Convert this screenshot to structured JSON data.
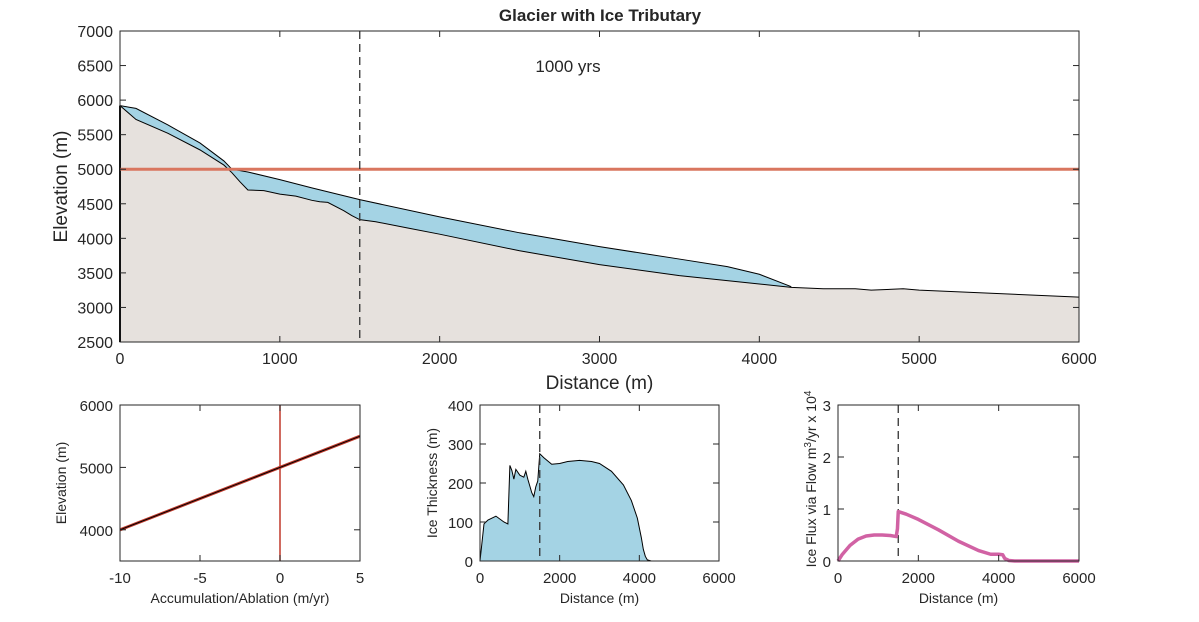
{
  "figure_title": "Glacier with Ice Tributary",
  "colors": {
    "bedrock_fill": "#e6e1dd",
    "ice_fill": "#a4d3e4",
    "ela_line": "#d9765f",
    "mb_line": "#c0392b",
    "flux_line": "#d162a4",
    "axis": "#262626"
  },
  "chart_data": [
    {
      "id": "profile",
      "type": "area",
      "title": "Glacier with Ice Tributary",
      "annotation": "1000 yrs",
      "xlabel": "Distance (m)",
      "ylabel": "Elevation (m)",
      "xlim": [
        0,
        6000
      ],
      "ylim": [
        2500,
        7000
      ],
      "xticks": [
        0,
        1000,
        2000,
        3000,
        4000,
        5000,
        6000
      ],
      "yticks": [
        2500,
        3000,
        3500,
        4000,
        4500,
        5000,
        5500,
        6000,
        6500,
        7000
      ],
      "ela": 5000,
      "marker_x": 1500,
      "bed": {
        "x": [
          0,
          100,
          300,
          500,
          650,
          700,
          750,
          800,
          900,
          1000,
          1100,
          1200,
          1250,
          1300,
          1400,
          1450,
          1500,
          1600,
          1800,
          2000,
          2500,
          3000,
          3500,
          4000,
          4200,
          4400,
          4600,
          4700,
          4900,
          5000,
          6000
        ],
        "y": [
          5920,
          5720,
          5520,
          5280,
          5060,
          4950,
          4820,
          4700,
          4690,
          4640,
          4610,
          4550,
          4530,
          4520,
          4400,
          4330,
          4270,
          4240,
          4150,
          4060,
          3820,
          3620,
          3460,
          3340,
          3290,
          3270,
          3270,
          3250,
          3270,
          3250,
          3150
        ]
      },
      "surface": {
        "x": [
          0,
          100,
          300,
          500,
          650,
          700,
          800,
          1000,
          1200,
          1500,
          2000,
          2500,
          3000,
          3500,
          3800,
          4000,
          4200
        ],
        "y": [
          5920,
          5880,
          5640,
          5380,
          5120,
          5000,
          4960,
          4850,
          4730,
          4560,
          4310,
          4080,
          3880,
          3700,
          3590,
          3480,
          3300
        ]
      }
    },
    {
      "id": "mass_balance",
      "type": "line",
      "xlabel": "Accumulation/Ablation (m/yr)",
      "ylabel": "Elevation (m)",
      "xlim": [
        -10,
        5
      ],
      "ylim": [
        3500,
        6000
      ],
      "xticks": [
        -10,
        -5,
        0,
        5
      ],
      "yticks": [
        4000,
        5000,
        6000
      ],
      "line": {
        "x": [
          -10,
          5
        ],
        "y": [
          4000,
          5500
        ]
      },
      "zero_line_x": 0
    },
    {
      "id": "thickness",
      "type": "area",
      "xlabel": "Distance (m)",
      "ylabel": "Ice Thickness (m)",
      "xlim": [
        0,
        6000
      ],
      "ylim": [
        0,
        400
      ],
      "xticks": [
        0,
        2000,
        4000,
        6000
      ],
      "yticks": [
        0,
        100,
        200,
        300,
        400
      ],
      "marker_x": 1500,
      "x": [
        0,
        100,
        200,
        400,
        600,
        700,
        750,
        800,
        850,
        900,
        1000,
        1100,
        1150,
        1200,
        1300,
        1350,
        1400,
        1450,
        1500,
        1600,
        1800,
        2000,
        2200,
        2500,
        2800,
        3000,
        3300,
        3600,
        3800,
        3950,
        4050,
        4100,
        4150,
        4200,
        4300,
        6000
      ],
      "y": [
        0,
        95,
        105,
        115,
        100,
        95,
        245,
        232,
        210,
        235,
        220,
        215,
        230,
        210,
        175,
        165,
        190,
        205,
        275,
        265,
        248,
        250,
        255,
        258,
        255,
        250,
        230,
        195,
        155,
        110,
        60,
        30,
        12,
        3,
        0,
        0
      ]
    },
    {
      "id": "flux",
      "type": "line",
      "xlabel": "Distance (m)",
      "ylabel": "Ice Flux via Flow m³/yr x 10⁴",
      "ylabel_parts": {
        "base": "Ice Flux via Flow m",
        "sup1": "3",
        "mid": "/yr x 10",
        "sup2": "4"
      },
      "xlim": [
        0,
        6000
      ],
      "ylim": [
        0,
        3
      ],
      "xticks": [
        0,
        2000,
        4000,
        6000
      ],
      "yticks": [
        0,
        1,
        2,
        3
      ],
      "marker_x": 1500,
      "x": [
        0,
        100,
        300,
        500,
        700,
        900,
        1100,
        1300,
        1450,
        1480,
        1500,
        1700,
        2000,
        2500,
        3000,
        3500,
        3800,
        4000,
        4100,
        4150,
        4250,
        4400,
        6000
      ],
      "y": [
        0,
        0.12,
        0.3,
        0.42,
        0.48,
        0.5,
        0.5,
        0.49,
        0.47,
        0.62,
        0.95,
        0.9,
        0.8,
        0.6,
        0.38,
        0.2,
        0.13,
        0.13,
        0.12,
        0.05,
        0.01,
        0,
        0
      ]
    }
  ]
}
